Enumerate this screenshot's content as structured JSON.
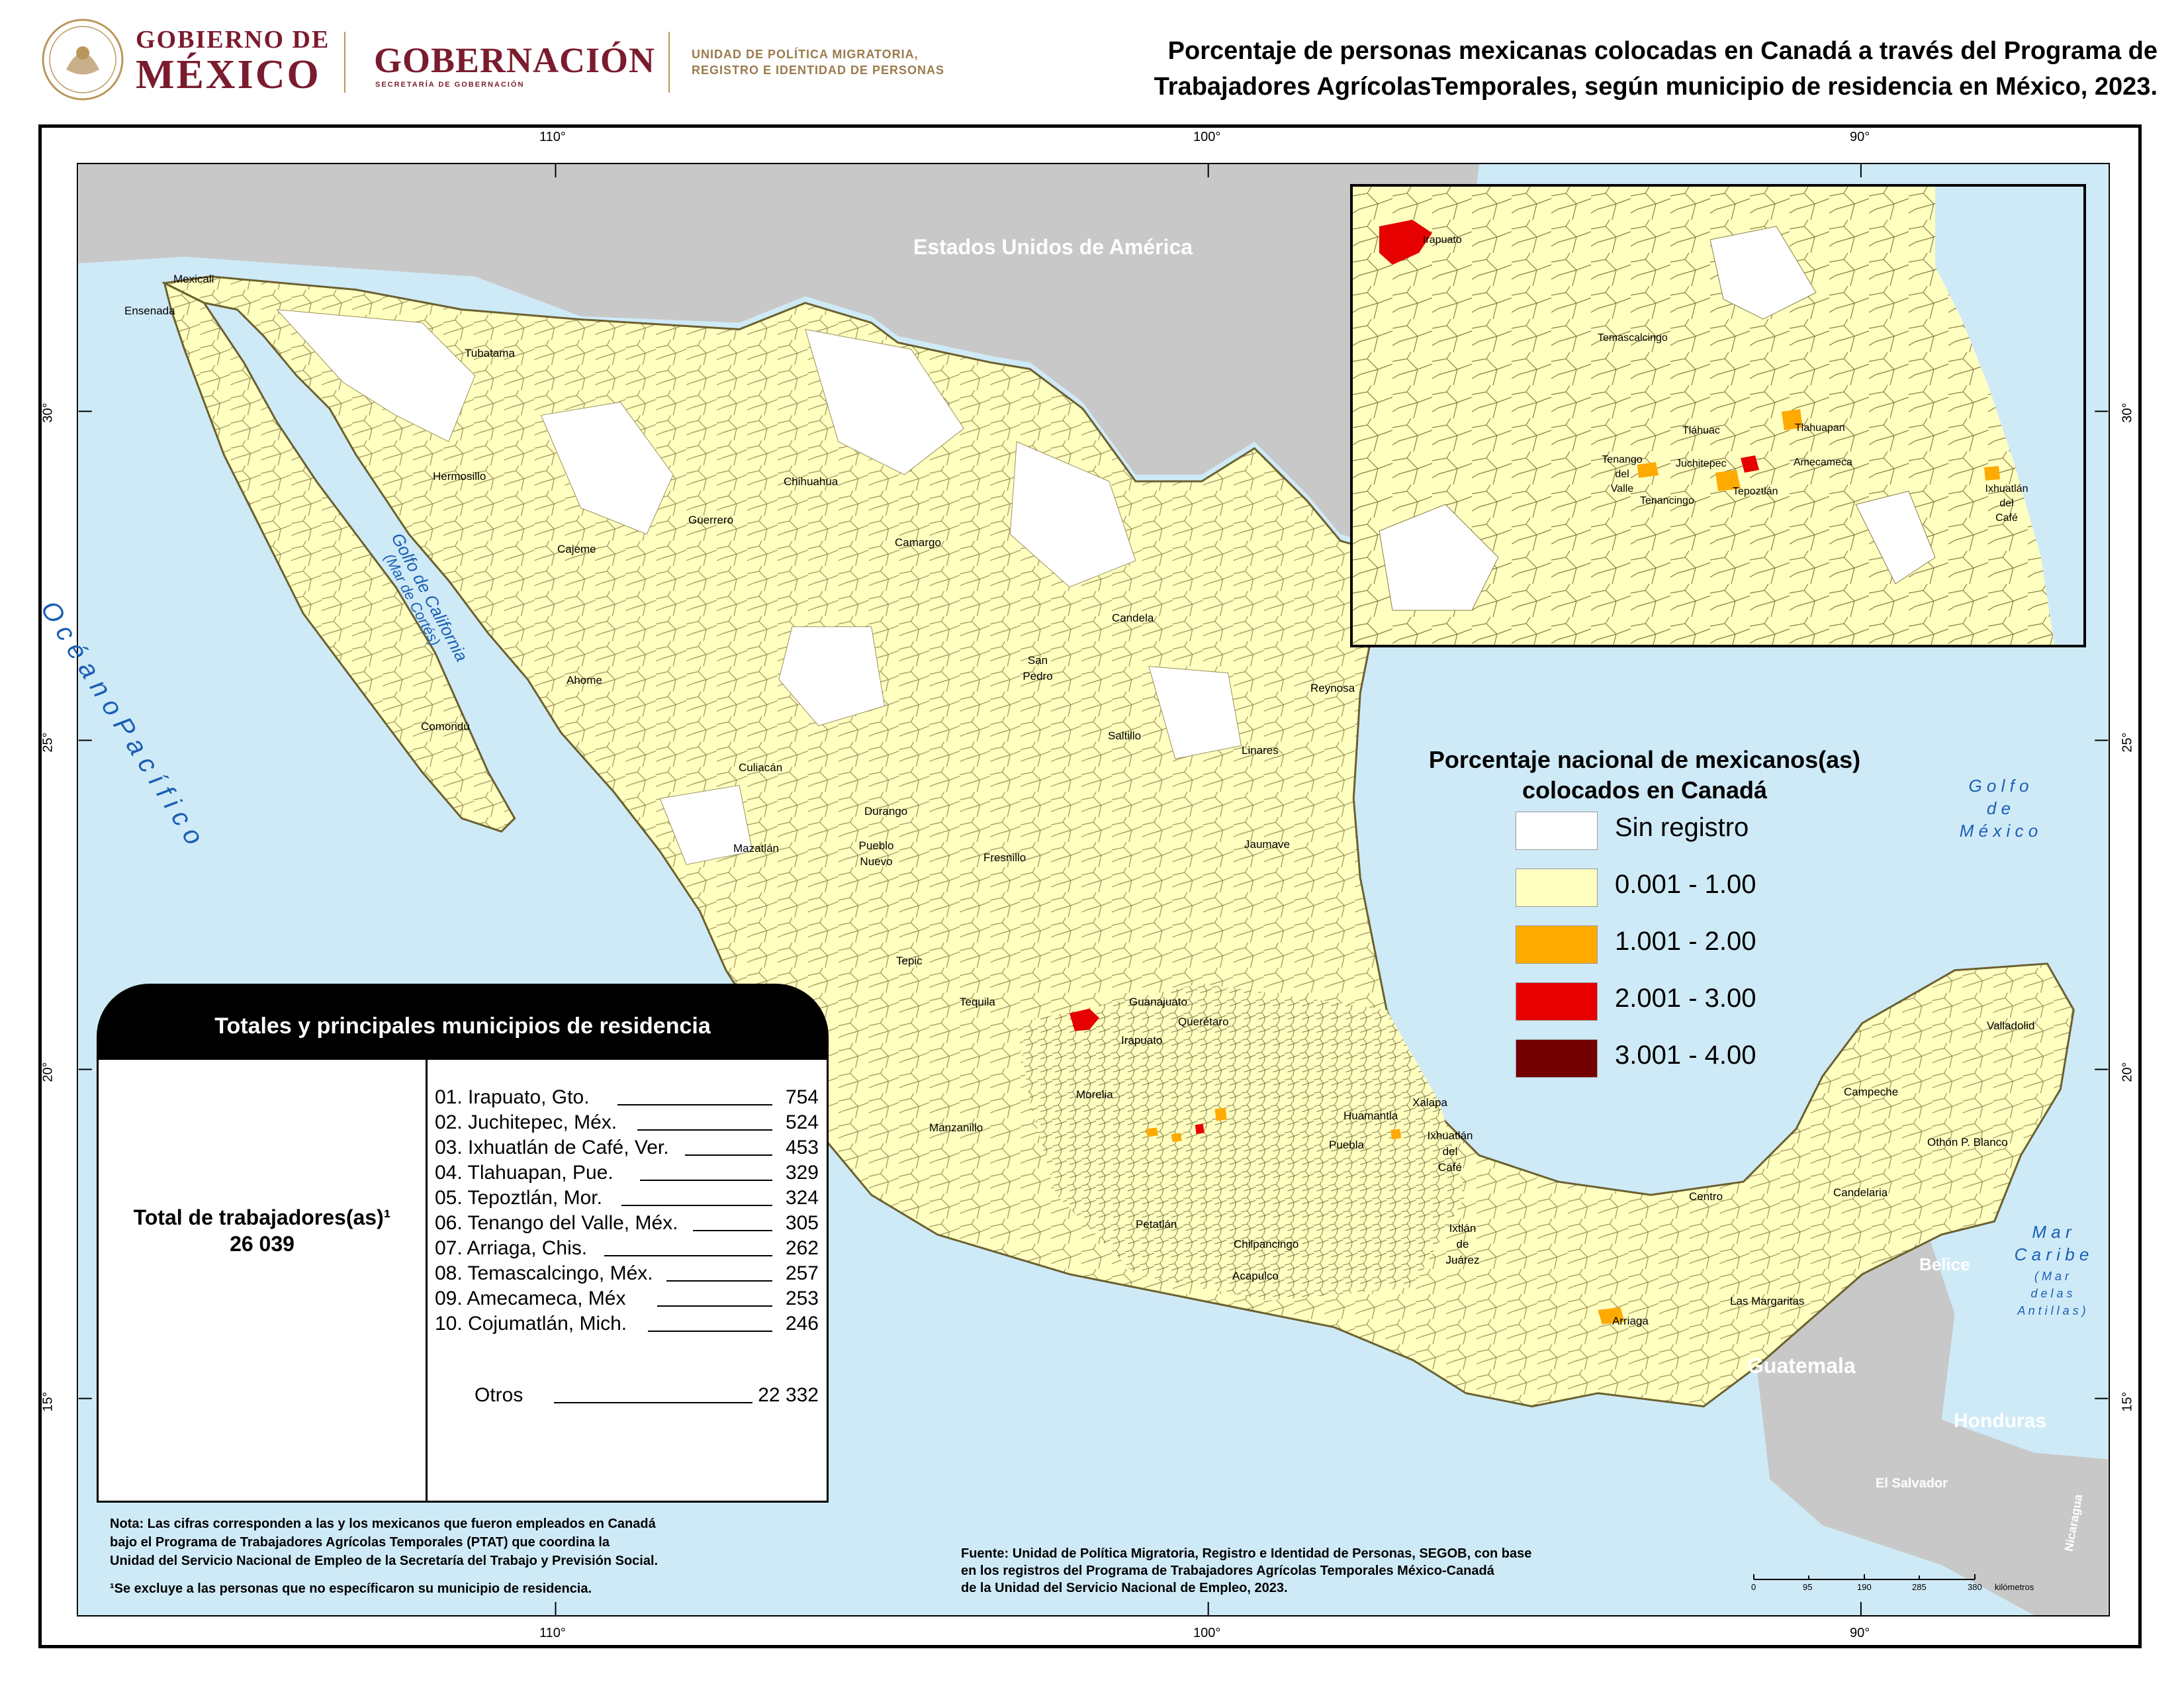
{
  "header": {
    "gob_line1": "GOBIERNO DE",
    "gob_line2": "MÉXICO",
    "gobernacion": "GOBERNACIÓN",
    "secretaria": "SECRETARÍA DE GOBERNACIÓN",
    "unidad_l1": "UNIDAD DE POLÍTICA MIGRATORIA,",
    "unidad_l2": "REGISTRO E IDENTIDAD DE PERSONAS",
    "title_l1": "Porcentaje de personas mexicanas colocadas en Canadá a través del Programa de",
    "title_l2": "Trabajadores AgrícolasTemporales, según municipio de residencia en México, 2023."
  },
  "graticule": {
    "top": [
      "110°",
      "100°",
      "90°"
    ],
    "bottom": [
      "110°",
      "100°",
      "90°"
    ],
    "left": [
      "30°",
      "25°",
      "20°",
      "15°"
    ],
    "right": [
      "30°",
      "25°",
      "20°",
      "15°"
    ]
  },
  "places": {
    "usa": "Estados Unidos de América",
    "guatemala": "Guatemala",
    "belice": "Belice",
    "honduras": "Honduras",
    "el_salvador": "El Salvador",
    "nicaragua": "Nicaragua",
    "oceano": "O c é a n o   P a c í f i c o",
    "golfo_california": "Golfo de California",
    "mar_cortes": "(Mar de Cortés)",
    "golfo_mexico_1": "G o l f o",
    "golfo_mexico_2": "d e",
    "golfo_mexico_3": "M é x i c o",
    "mar_caribe_1": "M a r",
    "mar_caribe_2": "C a r i b e",
    "mar_caribe_3": "( M a r",
    "mar_caribe_4": "d e   l a s",
    "mar_caribe_5": "A n t i l l a s )",
    "cities": {
      "mexicali": "Mexicali",
      "ensenada": "Ensenada",
      "tubatama": "Tubatama",
      "hermosillo": "Hermosillo",
      "cajeme": "Cajeme",
      "guerrero": "Guerrero",
      "chihuahua": "Chihuahua",
      "camargo": "Camargo",
      "candela": "Candela",
      "san_pedro_1": "San",
      "san_pedro_2": "Pedro",
      "reynosa": "Reynosa",
      "saltillo": "Saltillo",
      "linares": "Linares",
      "ahome": "Ahome",
      "comondu": "Comondú",
      "culiacan": "Culiacán",
      "durango": "Durango",
      "mazatlan": "Mazatlán",
      "pueblo_nuevo_1": "Pueblo",
      "pueblo_nuevo_2": "Nuevo",
      "fresnillo": "Fresnillo",
      "jaumave": "Jaumave",
      "tepic": "Tepic",
      "tequila": "Tequila",
      "guanajuato": "Guanajuato",
      "irapuato": "Irapuato",
      "queretaro": "Querétaro",
      "morelia": "Morelia",
      "manzanillo": "Manzanillo",
      "huamantla": "Huamantla",
      "xalapa": "Xalapa",
      "puebla": "Puebla",
      "ixhuatlan_1": "Ixhuatlán",
      "ixhuatlan_2": "del",
      "ixhuatlan_3": "Café",
      "petatlan": "Petatlán",
      "chilpancingo": "Chilpancingo",
      "acapulco": "Acapulco",
      "ixtlan_1": "Ixtlán",
      "ixtlan_2": "de",
      "ixtlan_3": "Juárez",
      "arriaga": "Arriaga",
      "centro": "Centro",
      "candelaria": "Candelaria",
      "campeche": "Campeche",
      "valladolid": "Valladolid",
      "othon": "Othón P. Blanco",
      "las_margaritas": "Las Margaritas"
    }
  },
  "inset": {
    "irapuato": "Irapuato",
    "temascalcingo": "Temascalcingo",
    "tlahuac": "Tláhuac",
    "tlahuapan": "Tlahuapan",
    "tenango_1": "Tenango",
    "tenango_2": "del",
    "tenango_3": "Valle",
    "juchitepec": "Juchitepec",
    "amecameca": "Amecameca",
    "tenancingo": "Tenancingo",
    "tepoztlan": "Tepoztlán",
    "ixhuatlan_1": "Ixhuatlán",
    "ixhuatlan_2": "del",
    "ixhuatlan_3": "Café"
  },
  "legend": {
    "title_l1": "Porcentaje nacional de mexicanos(as)",
    "title_l2": "colocados en Canadá",
    "items": [
      {
        "label": "Sin registro",
        "color": "#ffffff"
      },
      {
        "label": "0.001 - 1.00",
        "color": "#ffffc0"
      },
      {
        "label": "1.001 - 2.00",
        "color": "#ffaa00"
      },
      {
        "label": "2.001 - 3.00",
        "color": "#e60000"
      },
      {
        "label": "3.001 - 4.00",
        "color": "#730000"
      }
    ]
  },
  "totals": {
    "header": "Totales y principales municipios de residencia",
    "total_label": "Total de trabajadores(as)¹",
    "total_value": "26 039",
    "rows": [
      {
        "name": "01. Irapuato, Gto.",
        "value": "754"
      },
      {
        "name": "02. Juchitepec, Méx.",
        "value": "524"
      },
      {
        "name": "03. Ixhuatlán de Café, Ver.",
        "value": "453"
      },
      {
        "name": "04. Tlahuapan, Pue.",
        "value": "329"
      },
      {
        "name": "05. Tepoztlán, Mor.",
        "value": "324"
      },
      {
        "name": "06. Tenango del Valle, Méx.",
        "value": "305"
      },
      {
        "name": "07. Arriaga, Chis.",
        "value": "262"
      },
      {
        "name": "08. Temascalcingo, Méx.",
        "value": "257"
      },
      {
        "name": "09. Amecameca, Méx",
        "value": "253"
      },
      {
        "name": "10. Cojumatlán, Mich.",
        "value": "246"
      }
    ],
    "otros_label": "Otros",
    "otros_value": "22 332"
  },
  "notes": {
    "nota_l1": "Nota: Las cifras corresponden a las y los mexicanos que fueron empleados en Canadá",
    "nota_l2": "bajo el Programa de Trabajadores Agrícolas Temporales (PTAT) que coordina la",
    "nota_l3": "Unidad del Servicio Nacional de Empleo de la Secretaría del Trabajo y Previsión Social.",
    "nota_l4": "¹Se excluye a las personas que no especíﬁcaron su municipio de residencia.",
    "fuente_l1": "Fuente: Unidad de Política Migratoria, Registro e Identidad de Personas, SEGOB, con base",
    "fuente_l2": "en los registros del Programa de Trabajadores Agrícolas Temporales México-Canadá",
    "fuente_l3": "de la Unidad del Servicio Nacional de Empleo, 2023."
  },
  "scale": {
    "ticks": [
      "0",
      "95",
      "190",
      "285",
      "380"
    ],
    "unit": "kilómetros"
  },
  "colors": {
    "sea": "#cfeaf7",
    "land_other": "#c8c8c8",
    "mexico": "#ffffc0",
    "border": "#8a7a3a",
    "brand": "#7a1c2e"
  }
}
